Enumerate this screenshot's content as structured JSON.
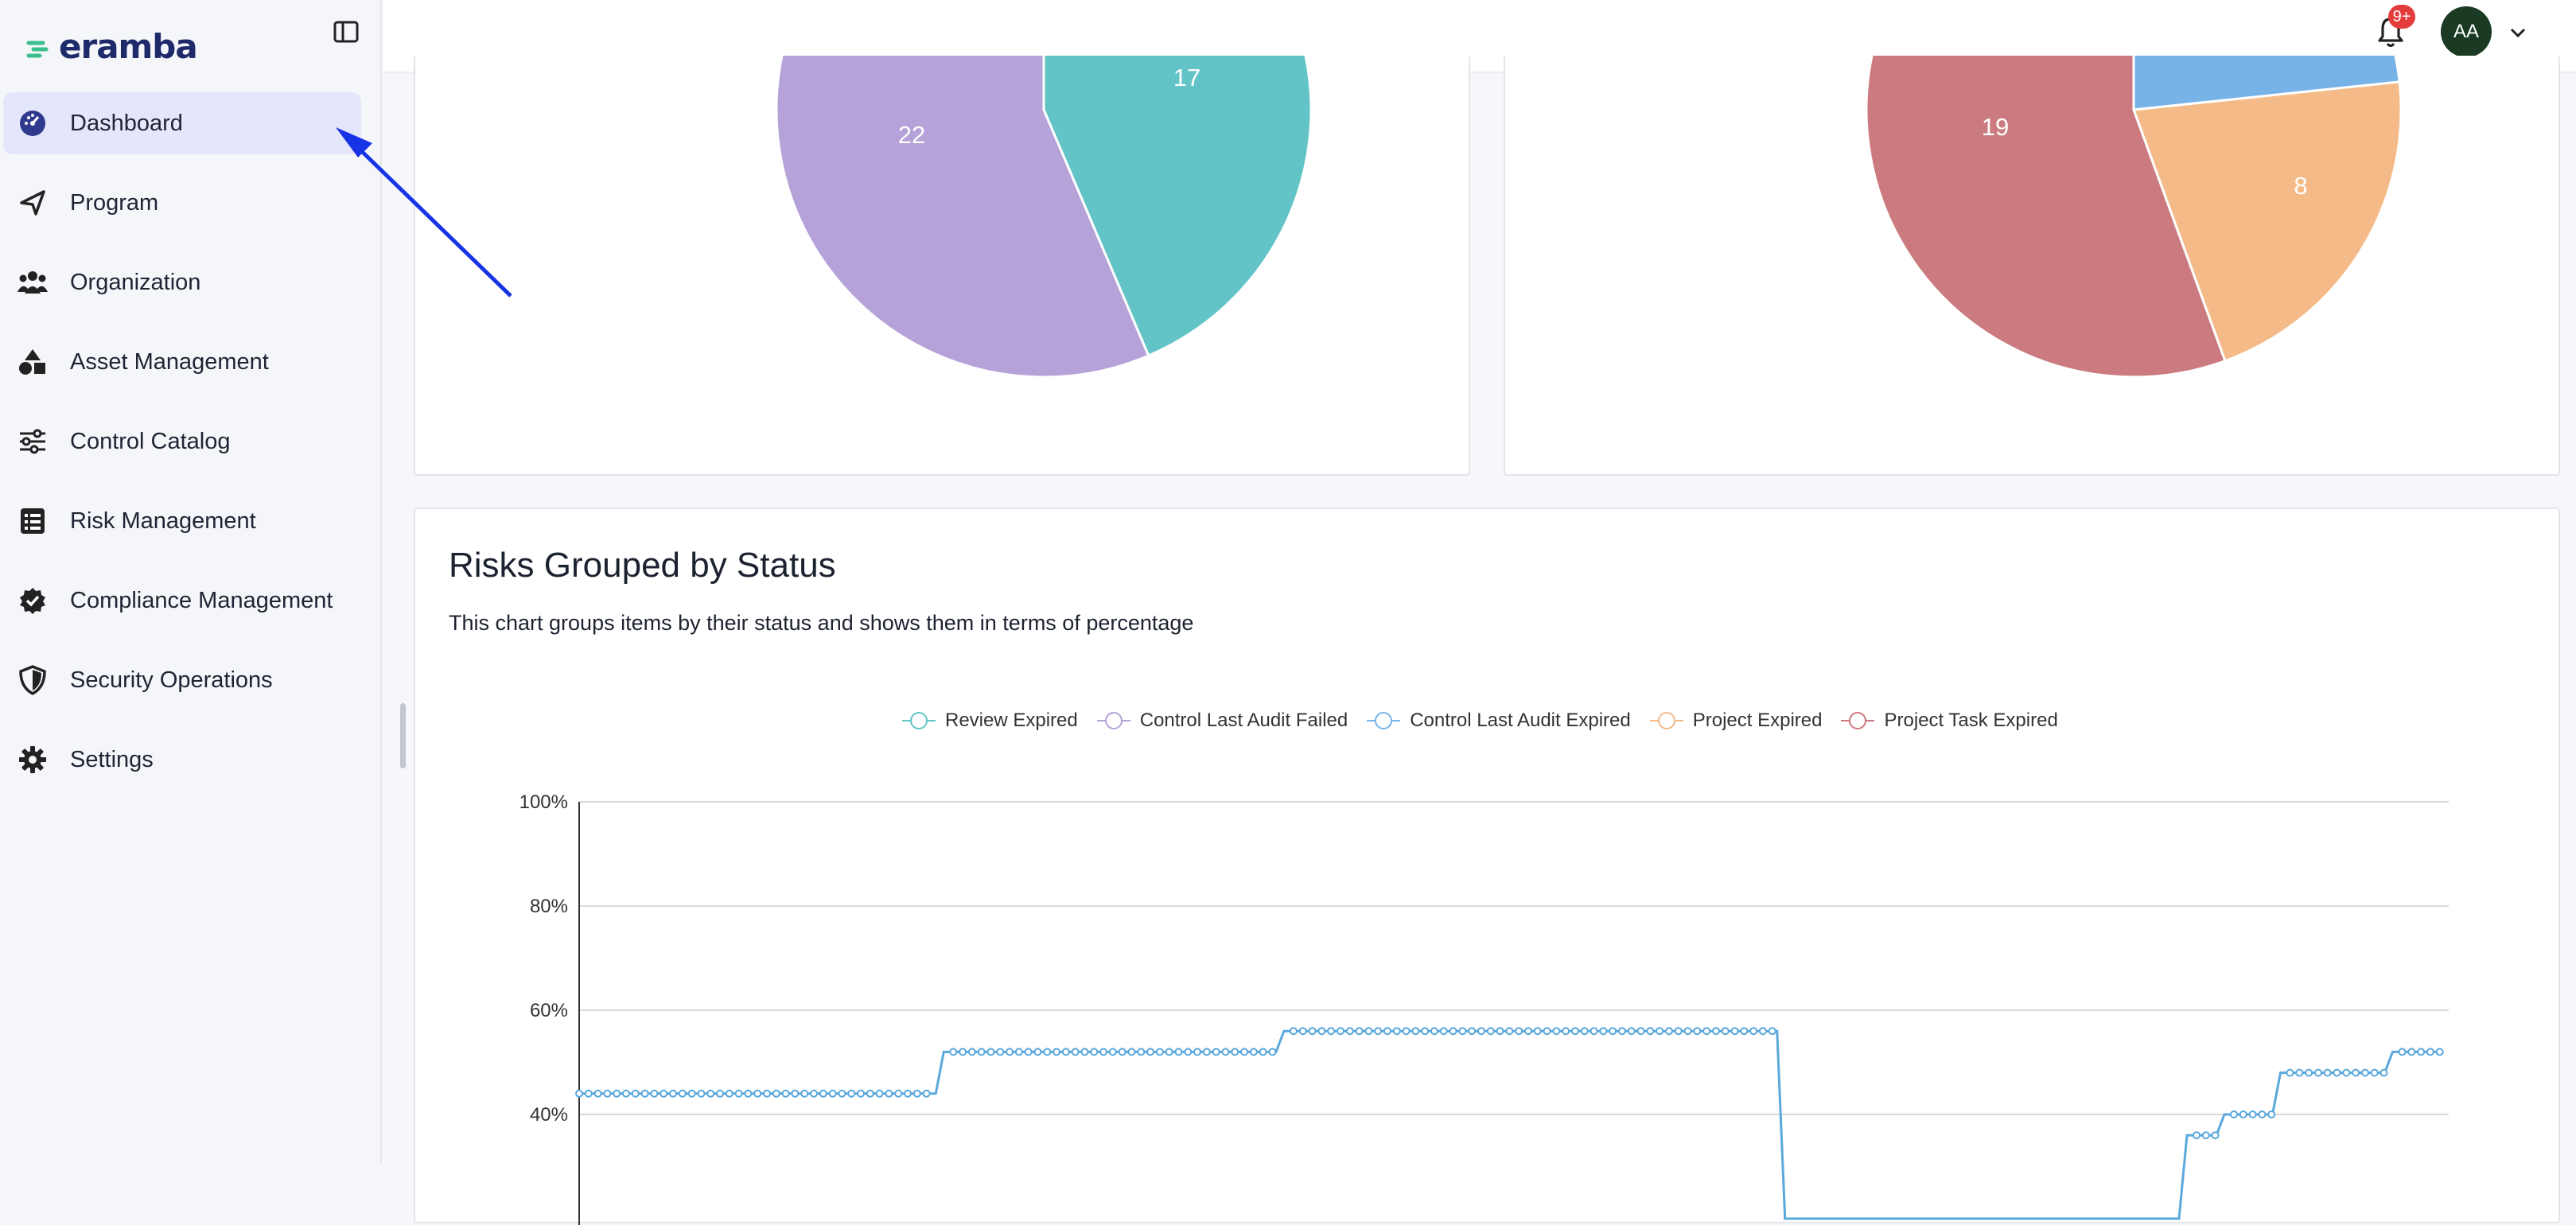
{
  "app": {
    "logo_text": "eramba"
  },
  "sidebar": {
    "items": [
      {
        "label": "Dashboard",
        "icon": "dashboard-icon",
        "active": true
      },
      {
        "label": "Program",
        "icon": "program-icon"
      },
      {
        "label": "Organization",
        "icon": "organization-icon"
      },
      {
        "label": "Asset Management",
        "icon": "asset-icon"
      },
      {
        "label": "Control Catalog",
        "icon": "sliders-icon"
      },
      {
        "label": "Risk Management",
        "icon": "list-icon"
      },
      {
        "label": "Compliance Management",
        "icon": "badge-check-icon"
      },
      {
        "label": "Security Operations",
        "icon": "shield-icon"
      },
      {
        "label": "Settings",
        "icon": "gear-icon"
      }
    ]
  },
  "header": {
    "notification_badge": "9+",
    "avatar_initials": "AA"
  },
  "colors": {
    "teal": "#62c4c6",
    "purple": "#b4a2d9",
    "blue": "#78b3e8",
    "orange": "#f4bb88",
    "red": "#cb7b7f",
    "line": "#5aa8dc",
    "active_nav": "#e4e6fb"
  },
  "pies": {
    "left": {
      "slices": [
        {
          "value": 22,
          "label": "22",
          "color": "#b4a2d9"
        },
        {
          "value": 17,
          "label": "17",
          "color": "#62c4c6"
        }
      ]
    },
    "right": {
      "slices": [
        {
          "value": 19,
          "label": "19",
          "color": "#cb7b7f"
        },
        {
          "value": 8,
          "label": "8",
          "color": "#f4bb88"
        }
      ]
    }
  },
  "risks_card": {
    "title": "Risks Grouped by Status",
    "subtitle": "This chart groups items by their status and shows them in terms of percentage"
  },
  "chart_data": {
    "type": "line",
    "title": "Risks Grouped by Status",
    "legend": [
      "Review Expired",
      "Control Last Audit Failed",
      "Control Last Audit Expired",
      "Project Expired",
      "Project Task Expired"
    ],
    "legend_colors": [
      "#62c4c6",
      "#b4a2d9",
      "#78b3e8",
      "#f4bb88",
      "#cb7b7f"
    ],
    "legend_placement": "top",
    "y_ticks": [
      "100%",
      "80%",
      "60%",
      "40%"
    ],
    "ylim": [
      0,
      100
    ],
    "grid": true,
    "series": [
      {
        "name": "Control Last Audit Expired",
        "segments": [
          {
            "from": 0,
            "to": 0.195,
            "value": 44
          },
          {
            "from": 0.195,
            "to": 0.377,
            "value": 52
          },
          {
            "from": 0.377,
            "to": 0.645,
            "value": 56
          },
          {
            "from": 0.645,
            "to": 0.86,
            "value": 20
          },
          {
            "from": 0.86,
            "to": 0.88,
            "value": 36
          },
          {
            "from": 0.88,
            "to": 0.91,
            "value": 40
          },
          {
            "from": 0.91,
            "to": 0.97,
            "value": 48
          },
          {
            "from": 0.97,
            "to": 1.0,
            "value": 52
          }
        ]
      }
    ]
  }
}
